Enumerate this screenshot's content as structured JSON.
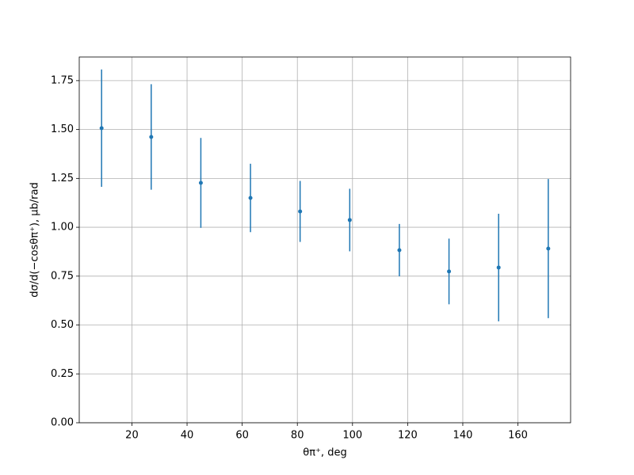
{
  "chart_data": {
    "type": "errorbar",
    "x_label": "θπ⁺, deg",
    "y_label": "dσ/d(−cosθπ⁺), μb/rad",
    "xlim": [
      0.9,
      179.1
    ],
    "ylim": [
      0,
      1.871
    ],
    "xticks": [
      20,
      40,
      60,
      80,
      100,
      120,
      140,
      160
    ],
    "yticks": [
      {
        "value": 0,
        "label": "0.00"
      },
      {
        "value": 0.25,
        "label": "0.25"
      },
      {
        "value": 0.5,
        "label": "0.50"
      },
      {
        "value": 0.75,
        "label": "0.75"
      },
      {
        "value": 1,
        "label": "1.00"
      },
      {
        "value": 1.25,
        "label": "1.25"
      },
      {
        "value": 1.5,
        "label": "1.50"
      },
      {
        "value": 1.75,
        "label": "1.75"
      }
    ],
    "grid": true,
    "series": [
      {
        "color": "#1f77b4",
        "x": [
          9,
          27,
          45,
          63,
          81,
          99,
          117,
          135,
          153,
          171
        ],
        "values": [
          1.507,
          1.462,
          1.227,
          1.15,
          1.081,
          1.037,
          0.883,
          0.774,
          0.794,
          0.891
        ],
        "errors": [
          0.3,
          0.27,
          0.23,
          0.175,
          0.156,
          0.16,
          0.134,
          0.168,
          0.275,
          0.356
        ]
      }
    ]
  }
}
